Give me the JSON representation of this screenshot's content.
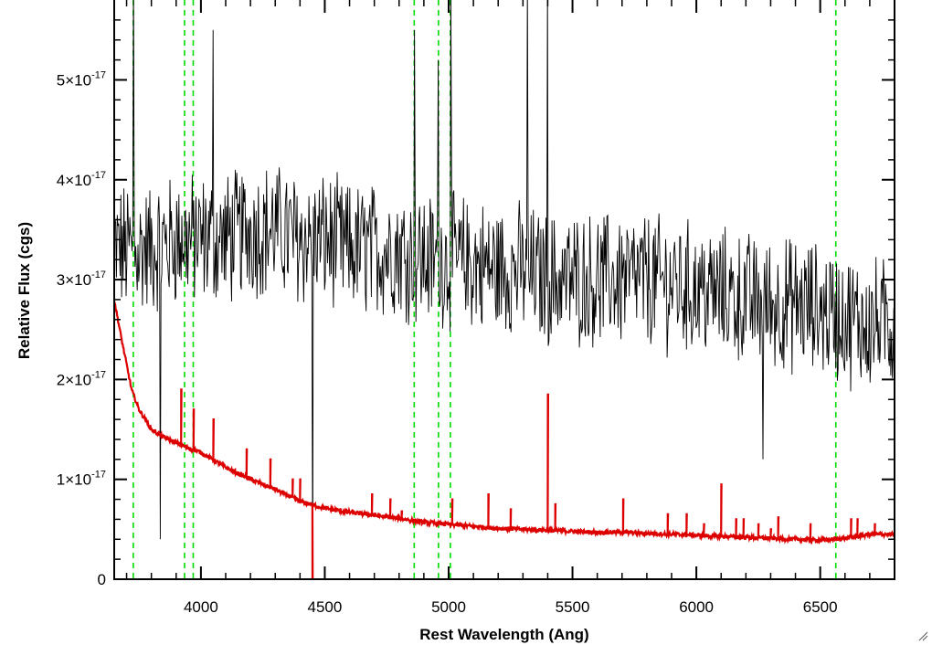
{
  "chart_data": {
    "type": "line",
    "title": "",
    "xlabel": "Rest Wavelength (Ang)",
    "ylabel": "Relative Flux (cgs)",
    "xlim": [
      3650,
      6800
    ],
    "ylim": [
      0,
      5.8e-17
    ],
    "x_ticks": [
      4000,
      4500,
      5000,
      5500,
      6000,
      6500
    ],
    "x_tick_labels": [
      "4000",
      "4500",
      "5000",
      "5500",
      "6000",
      "6500"
    ],
    "y_ticks": [
      0,
      1e-17,
      2e-17,
      3e-17,
      4e-17,
      5e-17
    ],
    "y_tick_labels": [
      {
        "mantissa": "0",
        "exponent": ""
      },
      {
        "mantissa": "1×10",
        "exponent": "-17"
      },
      {
        "mantissa": "2×10",
        "exponent": "-17"
      },
      {
        "mantissa": "3×10",
        "exponent": "-17"
      },
      {
        "mantissa": "4×10",
        "exponent": "-17"
      },
      {
        "mantissa": "5×10",
        "exponent": "-17"
      }
    ],
    "series": [
      {
        "style": "black thin noisy spectrum",
        "color": "#000000",
        "x": [
          3650,
          3700,
          3800,
          3900,
          4000,
          4100,
          4200,
          4300,
          4400,
          4500,
          4600,
          4700,
          4800,
          4900,
          5000,
          5100,
          5200,
          5300,
          5400,
          5500,
          5600,
          5700,
          5800,
          5900,
          6000,
          6100,
          6200,
          6300,
          6400,
          6500,
          6600,
          6700,
          6800
        ],
        "y": [
          3.3e-17,
          3.3e-17,
          3.3e-17,
          3.4e-17,
          3.4e-17,
          3.4e-17,
          3.5e-17,
          3.5e-17,
          3.4e-17,
          3.4e-17,
          3.3e-17,
          3.3e-17,
          3.3e-17,
          3.2e-17,
          3.2e-17,
          3.15e-17,
          3.1e-17,
          3.1e-17,
          3e-17,
          3e-17,
          3e-17,
          3e-17,
          3e-17,
          2.95e-17,
          2.9e-17,
          2.85e-17,
          2.8e-17,
          2.75e-17,
          2.75e-17,
          2.7e-17,
          2.6e-17,
          2.55e-17,
          2.55e-17
        ],
        "noise_amplitude": 6e-18,
        "spikes": [
          {
            "x": 3727,
            "y": 6e-17
          },
          {
            "x": 3835,
            "y": 4e-18
          },
          {
            "x": 4049,
            "y": 5.5e-17
          },
          {
            "x": 4450,
            "y": 0.0
          },
          {
            "x": 4862,
            "y": 5.5e-17
          },
          {
            "x": 4959,
            "y": 5.2e-17
          },
          {
            "x": 5008,
            "y": 6e-17
          },
          {
            "x": 5318,
            "y": 6e-17
          },
          {
            "x": 5400,
            "y": 6e-17
          },
          {
            "x": 6270,
            "y": 1.2e-17
          }
        ]
      },
      {
        "style": "red model spectrum",
        "color": "#dd0000",
        "x": [
          3650,
          3680,
          3700,
          3720,
          3750,
          3800,
          3850,
          3900,
          3950,
          4000,
          4100,
          4200,
          4300,
          4400,
          4500,
          4600,
          4700,
          4800,
          4900,
          5000,
          5100,
          5200,
          5300,
          5400,
          5500,
          5600,
          5700,
          5800,
          5900,
          6000,
          6100,
          6200,
          6300,
          6400,
          6500,
          6600,
          6700,
          6800
        ],
        "y": [
          2.8e-17,
          2.4e-17,
          2.15e-17,
          1.9e-17,
          1.7e-17,
          1.5e-17,
          1.42e-17,
          1.37e-17,
          1.31e-17,
          1.27e-17,
          1.12e-17,
          1e-17,
          9e-18,
          7.8e-18,
          7.1e-18,
          6.7e-18,
          6.4e-18,
          6.1e-18,
          5.7e-18,
          5.5e-18,
          5.3e-18,
          5.1e-18,
          5e-18,
          4.9e-18,
          4.8e-18,
          4.7e-18,
          4.7e-18,
          4.6e-18,
          4.5e-18,
          4.4e-18,
          4.3e-18,
          4.2e-18,
          4.1e-18,
          4e-18,
          3.9e-18,
          4.1e-18,
          4.5e-18,
          4.5e-18
        ],
        "emission_lines": [
          {
            "x": 3920,
            "y": 1.9e-17
          },
          {
            "x": 3970,
            "y": 1.7e-17
          },
          {
            "x": 4050,
            "y": 1.6e-17
          },
          {
            "x": 4185,
            "y": 1.3e-17
          },
          {
            "x": 4280,
            "y": 1.2e-17
          },
          {
            "x": 4370,
            "y": 1e-17
          },
          {
            "x": 4400,
            "y": 1e-17
          },
          {
            "x": 4690,
            "y": 8.5e-18
          },
          {
            "x": 4765,
            "y": 8e-18
          },
          {
            "x": 4810,
            "y": 6.8e-18
          },
          {
            "x": 5015,
            "y": 8e-18
          },
          {
            "x": 5160,
            "y": 8.5e-18
          },
          {
            "x": 5250,
            "y": 7e-18
          },
          {
            "x": 5400,
            "y": 1.85e-17
          },
          {
            "x": 5430,
            "y": 7.5e-18
          },
          {
            "x": 5705,
            "y": 8e-18
          },
          {
            "x": 5885,
            "y": 6.5e-18
          },
          {
            "x": 5960,
            "y": 6.5e-18
          },
          {
            "x": 6030,
            "y": 5.5e-18
          },
          {
            "x": 6100,
            "y": 9.5e-18
          },
          {
            "x": 6160,
            "y": 6e-18
          },
          {
            "x": 6190,
            "y": 6e-18
          },
          {
            "x": 6250,
            "y": 5.5e-18
          },
          {
            "x": 6300,
            "y": 5e-18
          },
          {
            "x": 6330,
            "y": 6.2e-18
          },
          {
            "x": 6460,
            "y": 5.5e-18
          },
          {
            "x": 6625,
            "y": 6e-18
          },
          {
            "x": 6650,
            "y": 6e-18
          },
          {
            "x": 6720,
            "y": 5.5e-18
          }
        ],
        "absorption_lines": [
          {
            "x": 4450,
            "y": -2e-18
          }
        ]
      }
    ],
    "vertical_markers": {
      "color": "#00dd00",
      "style": "dashed",
      "x": [
        3727,
        3934,
        3969,
        4861,
        4959,
        5007,
        6563
      ]
    },
    "grid": false,
    "legend": "none"
  }
}
